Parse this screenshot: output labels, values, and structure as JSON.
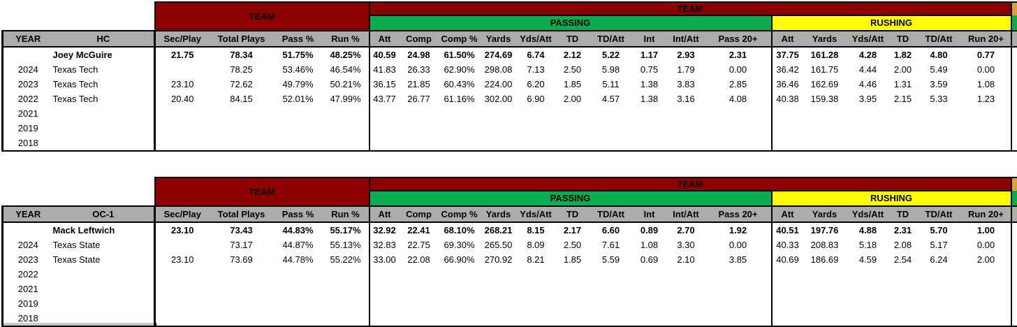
{
  "page_background": "#FFFFFF",
  "colors": {
    "band_maroon": "#8C0000",
    "band_green": "#0BAB50",
    "band_yellow": "#FFFF00",
    "band_orange_sliver": "#E2A233",
    "header_gray": "#ACACAC",
    "border_black": "#000000"
  },
  "chart_data": [
    {
      "type": "table",
      "role": "HC",
      "coach": "Joey McGuire",
      "team": "Texas Tech",
      "band_headers": {
        "team_left": "TEAM",
        "team_right": "TEAM",
        "passing": "PASSING",
        "rushing": "RUSHING"
      },
      "column_headers": [
        "YEAR",
        "HC",
        "Sec/Play",
        "Total Plays",
        "Pass %",
        "Run %",
        "Att",
        "Comp",
        "Comp %",
        "Yards",
        "Yds/Att",
        "TD",
        "TD/Att",
        "Int",
        "Int/Att",
        "Pass 20+",
        "Att",
        "Yards",
        "Yds/Att",
        "TD",
        "TD/Att",
        "Run 20+"
      ],
      "rows": [
        {
          "year": "",
          "label": "Joey McGuire",
          "bold": true,
          "values": [
            "21.75",
            "78.34",
            "51.75%",
            "48.25%",
            "40.59",
            "24.98",
            "61.50%",
            "274.69",
            "6.74",
            "2.12",
            "5.22",
            "1.17",
            "2.93",
            "2.31",
            "37.75",
            "161.28",
            "4.28",
            "1.82",
            "4.80",
            "0.77"
          ]
        },
        {
          "year": "2024",
          "label": "Texas Tech",
          "bold": false,
          "values": [
            "",
            "78.25",
            "53.46%",
            "46.54%",
            "41.83",
            "26.33",
            "62.90%",
            "298.08",
            "7.13",
            "2.50",
            "5.98",
            "0.75",
            "1.79",
            "0.00",
            "36.42",
            "161.75",
            "4.44",
            "2.00",
            "5.49",
            "0.00"
          ]
        },
        {
          "year": "2023",
          "label": "Texas Tech",
          "bold": false,
          "values": [
            "23.10",
            "72.62",
            "49.79%",
            "50.21%",
            "36.15",
            "21.85",
            "60.43%",
            "224.00",
            "6.20",
            "1.85",
            "5.11",
            "1.38",
            "3.83",
            "2.85",
            "36.46",
            "162.69",
            "4.46",
            "1.31",
            "3.59",
            "1.08"
          ]
        },
        {
          "year": "2022",
          "label": "Texas Tech",
          "bold": false,
          "values": [
            "20.40",
            "84.15",
            "52.01%",
            "47.99%",
            "43.77",
            "26.77",
            "61.16%",
            "302.00",
            "6.90",
            "2.00",
            "4.57",
            "1.38",
            "3.16",
            "4.08",
            "40.38",
            "159.38",
            "3.95",
            "2.15",
            "5.33",
            "1.23"
          ]
        },
        {
          "year": "2021",
          "label": "",
          "bold": false,
          "values": []
        },
        {
          "year": "2019",
          "label": "",
          "bold": false,
          "values": []
        },
        {
          "year": "2018",
          "label": "",
          "bold": false,
          "values": []
        }
      ]
    },
    {
      "type": "table",
      "role": "OC-1",
      "coach": "Mack Leftwich",
      "team": "Texas State",
      "band_headers": {
        "team_left": "TEAM",
        "team_right": "TEAM",
        "passing": "PASSING",
        "rushing": "RUSHING"
      },
      "column_headers": [
        "YEAR",
        "OC-1",
        "Sec/Play",
        "Total Plays",
        "Pass %",
        "Run %",
        "Att",
        "Comp",
        "Comp %",
        "Yards",
        "Yds/Att",
        "TD",
        "TD/Att",
        "Int",
        "Int/Att",
        "Pass 20+",
        "Att",
        "Yards",
        "Yds/Att",
        "TD",
        "TD/Att",
        "Run 20+"
      ],
      "rows": [
        {
          "year": "",
          "label": "Mack Leftwich",
          "bold": true,
          "values": [
            "23.10",
            "73.43",
            "44.83%",
            "55.17%",
            "32.92",
            "22.41",
            "68.10%",
            "268.21",
            "8.15",
            "2.17",
            "6.60",
            "0.89",
            "2.70",
            "1.92",
            "40.51",
            "197.76",
            "4.88",
            "2.31",
            "5.70",
            "1.00"
          ]
        },
        {
          "year": "2024",
          "label": "Texas State",
          "bold": false,
          "values": [
            "",
            "73.17",
            "44.87%",
            "55.13%",
            "32.83",
            "22.75",
            "69.30%",
            "265.50",
            "8.09",
            "2.50",
            "7.61",
            "1.08",
            "3.30",
            "0.00",
            "40.33",
            "208.83",
            "5.18",
            "2.08",
            "5.17",
            "0.00"
          ]
        },
        {
          "year": "2023",
          "label": "Texas State",
          "bold": false,
          "values": [
            "23.10",
            "73.69",
            "44.78%",
            "55.22%",
            "33.00",
            "22.08",
            "66.90%",
            "270.92",
            "8.21",
            "1.85",
            "5.59",
            "0.69",
            "2.10",
            "3.85",
            "40.69",
            "186.69",
            "4.59",
            "2.54",
            "6.24",
            "2.00"
          ]
        },
        {
          "year": "2022",
          "label": "",
          "bold": false,
          "values": []
        },
        {
          "year": "2021",
          "label": "",
          "bold": false,
          "values": []
        },
        {
          "year": "2019",
          "label": "",
          "bold": false,
          "values": []
        },
        {
          "year": "2018",
          "label": "",
          "bold": false,
          "values": []
        }
      ]
    }
  ]
}
